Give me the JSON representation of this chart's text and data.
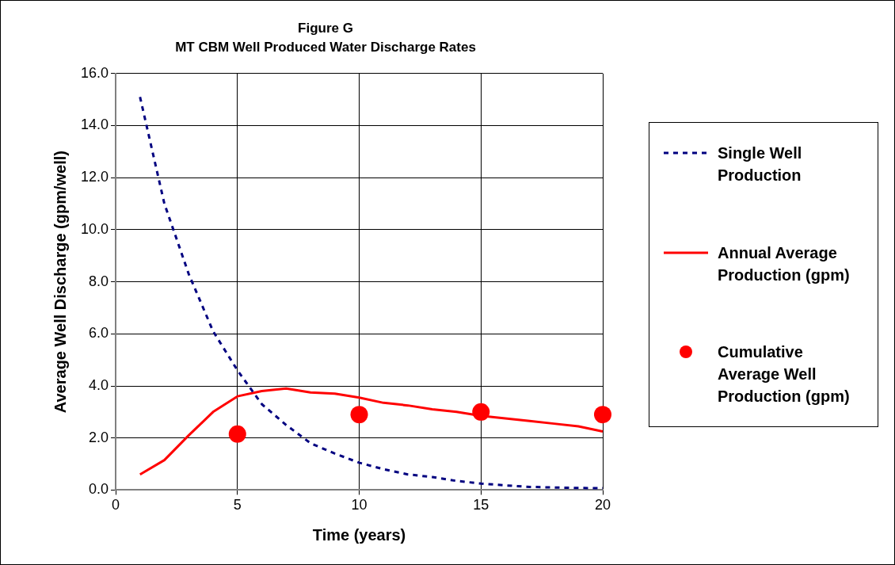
{
  "chart_data": {
    "type": "line",
    "title": "Figure G",
    "subtitle": "MT CBM Well Produced Water Discharge Rates",
    "xlabel": "Time (years)",
    "ylabel": "Average Well Discharge (gpm/well)",
    "x": [
      1,
      2,
      3,
      4,
      5,
      6,
      7,
      8,
      9,
      10,
      11,
      12,
      13,
      14,
      15,
      16,
      17,
      18,
      19,
      20
    ],
    "series": [
      {
        "name": "Single Well Production",
        "color": "#000080",
        "line_style": "dashed",
        "marker": "none",
        "values": [
          15.1,
          11.0,
          8.3,
          6.1,
          4.6,
          3.3,
          2.5,
          1.8,
          1.4,
          1.05,
          0.8,
          0.6,
          0.5,
          0.35,
          0.25,
          0.18,
          0.12,
          0.1,
          0.08,
          0.07
        ]
      },
      {
        "name": "Annual Average Production (gpm)",
        "color": "#ff0000",
        "line_style": "solid",
        "marker": "none",
        "values": [
          0.6,
          1.15,
          2.1,
          3.0,
          3.6,
          3.8,
          3.9,
          3.75,
          3.7,
          3.55,
          3.35,
          3.25,
          3.1,
          3.0,
          2.85,
          2.75,
          2.65,
          2.55,
          2.45,
          2.25
        ]
      },
      {
        "name": "Cumulative Average Well Production (gpm)",
        "type": "scatter",
        "color": "#ff0000",
        "marker": "circle",
        "x": [
          5,
          10,
          15,
          20
        ],
        "values": [
          2.15,
          2.9,
          3.0,
          2.9
        ]
      }
    ],
    "xlim": [
      0,
      20
    ],
    "xticks": [
      0,
      5,
      10,
      15,
      20
    ],
    "ylim": [
      0,
      16
    ],
    "yticks": [
      {
        "value": 0,
        "label": "0.0"
      },
      {
        "value": 2,
        "label": "2.0"
      },
      {
        "value": 4,
        "label": "4.0"
      },
      {
        "value": 6,
        "label": "6.0"
      },
      {
        "value": 8,
        "label": "8.0"
      },
      {
        "value": 10,
        "label": "10.0"
      },
      {
        "value": 12,
        "label": "12.0"
      },
      {
        "value": 14,
        "label": "14.0"
      },
      {
        "value": 16,
        "label": "16.0"
      }
    ],
    "grid": true,
    "legend": "right"
  }
}
